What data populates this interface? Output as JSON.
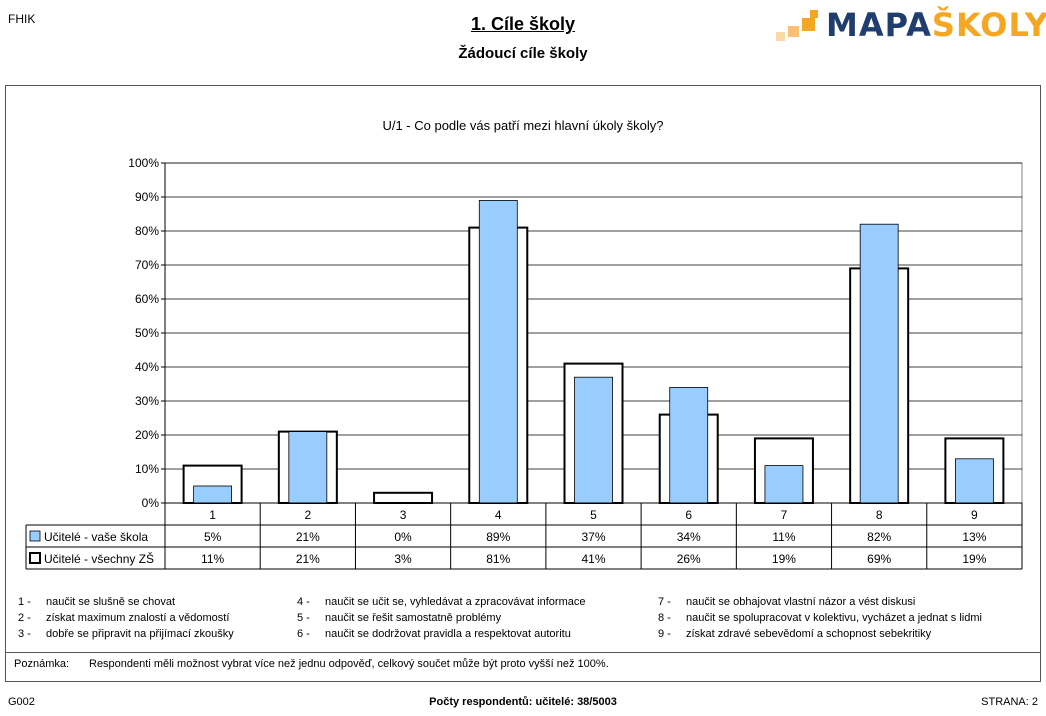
{
  "header": {
    "code": "FHIK",
    "title": "1. Cíle školy",
    "subtitle": "Žádoucí cíle školy",
    "logo_part1": "MAPA",
    "logo_part2": "ŠKOLY"
  },
  "colors": {
    "series1_fill": "#99ccff",
    "series2_fill": "#ffffff",
    "logo_blue": "#1f3d6e",
    "logo_orange": "#f5a623"
  },
  "chart_data": {
    "type": "bar",
    "title": "U/1 - Co podle vás patří mezi hlavní úkoly školy?",
    "categories": [
      "1",
      "2",
      "3",
      "4",
      "5",
      "6",
      "7",
      "8",
      "9"
    ],
    "ylim": [
      0,
      100
    ],
    "yticks": [
      "0%",
      "10%",
      "20%",
      "30%",
      "40%",
      "50%",
      "60%",
      "70%",
      "80%",
      "90%",
      "100%"
    ],
    "grid": true,
    "series": [
      {
        "name": "Učitelé - vaše škola",
        "values": [
          5,
          21,
          0,
          89,
          37,
          34,
          11,
          82,
          13
        ],
        "labels": [
          "5%",
          "21%",
          "0%",
          "89%",
          "37%",
          "34%",
          "11%",
          "82%",
          "13%"
        ]
      },
      {
        "name": "Učitelé - všechny ZŠ",
        "values": [
          11,
          21,
          3,
          81,
          41,
          26,
          19,
          69,
          19
        ],
        "labels": [
          "11%",
          "21%",
          "3%",
          "81%",
          "41%",
          "26%",
          "19%",
          "69%",
          "19%"
        ]
      }
    ]
  },
  "legend_items": [
    {
      "num": "1  -",
      "text": "naučit se slušně se chovat"
    },
    {
      "num": "2  -",
      "text": "získat maximum znalostí a vědomostí"
    },
    {
      "num": "3  -",
      "text": "dobře se připravit na přijímací zkoušky"
    },
    {
      "num": "4  -",
      "text": "naučit se učit se, vyhledávat a zpracovávat informace"
    },
    {
      "num": "5  -",
      "text": "naučit se řešit samostatně problémy"
    },
    {
      "num": "6  -",
      "text": "naučit se dodržovat pravidla a respektovat autoritu"
    },
    {
      "num": "7  -",
      "text": "naučit se obhajovat vlastní názor a vést diskusi"
    },
    {
      "num": "8  -",
      "text": "naučit se spolupracovat v kolektivu, vycházet a jednat s lidmi"
    },
    {
      "num": "9  -",
      "text": "získat zdravé sebevědomí a schopnost sebekritiky"
    }
  ],
  "note": {
    "label": "Poznámka:",
    "text": "Respondenti měli možnost vybrat více než jednu odpověď, celkový součet může být proto vyšší než 100%."
  },
  "footer": {
    "left": "G002",
    "respondents": "Počty respondentů:   učitelé: 38/5003",
    "page": "STRANA: 2"
  }
}
